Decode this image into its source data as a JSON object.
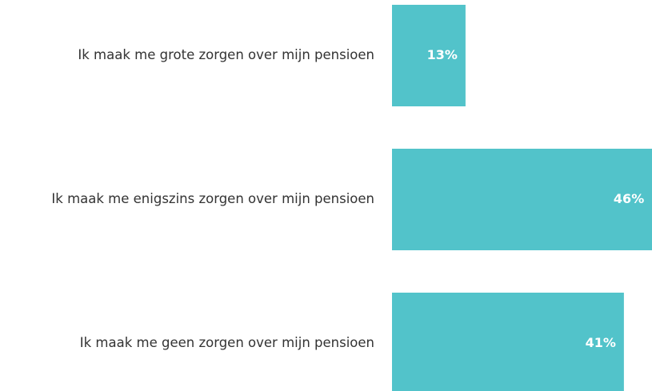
{
  "chart_data": {
    "type": "hbar",
    "categories": [
      "Ik maak me grote zorgen over mijn pensioen",
      "Ik maak me enigszins zorgen over mijn pensioen",
      "Ik maak me geen zorgen over mijn pensioen"
    ],
    "values": [
      13,
      46,
      41
    ],
    "value_labels": [
      "13%",
      "46%",
      "41%"
    ],
    "color": "#52c3ca"
  }
}
